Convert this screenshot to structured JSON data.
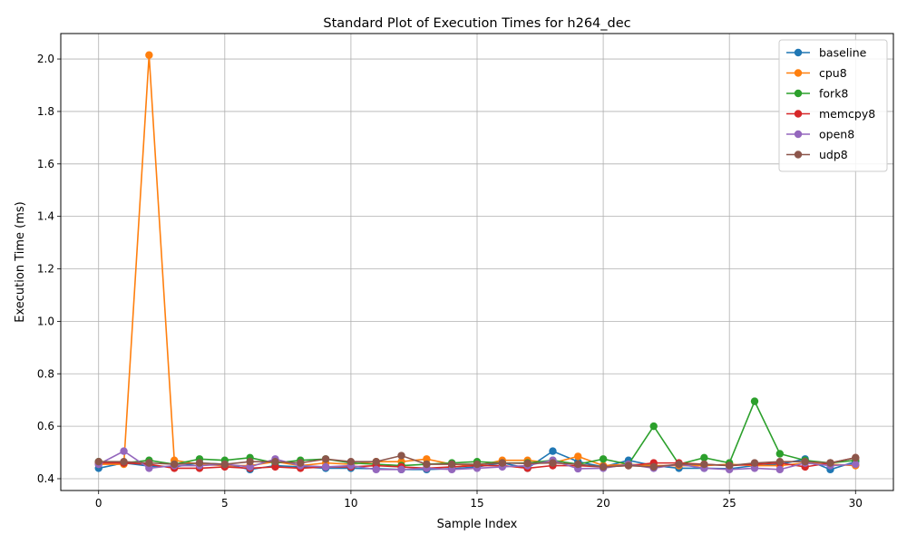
{
  "chart_data": {
    "type": "line",
    "title": "Standard Plot of Execution Times for h264_dec",
    "xlabel": "Sample Index",
    "ylabel": "Execution Time (ms)",
    "xlim": [
      -1.5,
      31.5
    ],
    "ylim": [
      0.355,
      2.097
    ],
    "xticks": [
      0,
      5,
      10,
      15,
      20,
      25,
      30
    ],
    "yticks": [
      0.4,
      0.6,
      0.8,
      1.0,
      1.2,
      1.4,
      1.6,
      1.8,
      2.0
    ],
    "ytick_labels": [
      "0.4",
      "0.6",
      "0.8",
      "1.0",
      "1.2",
      "1.4",
      "1.6",
      "1.8",
      "2.0"
    ],
    "grid": true,
    "legend_position": "top-right",
    "x": [
      0,
      1,
      2,
      3,
      4,
      5,
      6,
      7,
      8,
      9,
      10,
      11,
      12,
      13,
      14,
      15,
      16,
      17,
      18,
      19,
      20,
      21,
      22,
      23,
      24,
      25,
      26,
      27,
      28,
      29,
      30
    ],
    "series": [
      {
        "name": "baseline",
        "color": "#1f77b4",
        "values": [
          0.44,
          0.46,
          0.448,
          0.445,
          0.46,
          0.455,
          0.435,
          0.45,
          0.445,
          0.44,
          0.44,
          0.438,
          0.435,
          0.435,
          0.438,
          0.445,
          0.46,
          0.44,
          0.505,
          0.465,
          0.445,
          0.47,
          0.45,
          0.44,
          0.44,
          0.438,
          0.45,
          0.455,
          0.475,
          0.435,
          0.465
        ]
      },
      {
        "name": "cpu8",
        "color": "#ff7f0e",
        "values": [
          0.455,
          0.455,
          2.015,
          0.47,
          0.455,
          0.45,
          0.45,
          0.465,
          0.45,
          0.46,
          0.455,
          0.465,
          0.465,
          0.475,
          0.455,
          0.45,
          0.47,
          0.47,
          0.46,
          0.485,
          0.45,
          0.455,
          0.45,
          0.45,
          0.45,
          0.455,
          0.45,
          0.45,
          0.46,
          0.455,
          0.45
        ]
      },
      {
        "name": "fork8",
        "color": "#2ca02c",
        "values": [
          0.465,
          0.46,
          0.47,
          0.455,
          0.475,
          0.47,
          0.48,
          0.46,
          0.47,
          0.475,
          0.46,
          0.455,
          0.45,
          0.455,
          0.46,
          0.465,
          0.46,
          0.46,
          0.47,
          0.455,
          0.475,
          0.455,
          0.6,
          0.455,
          0.48,
          0.46,
          0.695,
          0.495,
          0.47,
          0.46,
          0.47
        ]
      },
      {
        "name": "memcpy8",
        "color": "#d62728",
        "values": [
          0.46,
          0.46,
          0.455,
          0.44,
          0.44,
          0.445,
          0.44,
          0.445,
          0.44,
          0.445,
          0.445,
          0.45,
          0.445,
          0.44,
          0.445,
          0.45,
          0.45,
          0.44,
          0.45,
          0.45,
          0.445,
          0.45,
          0.46,
          0.46,
          0.455,
          0.45,
          0.455,
          0.46,
          0.445,
          0.46,
          0.48
        ]
      },
      {
        "name": "open8",
        "color": "#9467bd",
        "values": [
          0.455,
          0.505,
          0.44,
          0.45,
          0.45,
          0.455,
          0.445,
          0.475,
          0.45,
          0.445,
          0.45,
          0.435,
          0.435,
          0.44,
          0.435,
          0.44,
          0.445,
          0.45,
          0.47,
          0.438,
          0.44,
          0.455,
          0.44,
          0.455,
          0.44,
          0.435,
          0.44,
          0.435,
          0.46,
          0.45,
          0.455
        ]
      },
      {
        "name": "udp8",
        "color": "#8c564b",
        "values": [
          0.465,
          0.465,
          0.46,
          0.455,
          0.46,
          0.455,
          0.465,
          0.465,
          0.46,
          0.475,
          0.465,
          0.465,
          0.488,
          0.455,
          0.455,
          0.455,
          0.46,
          0.458,
          0.46,
          0.455,
          0.445,
          0.45,
          0.445,
          0.455,
          0.455,
          0.45,
          0.46,
          0.465,
          0.465,
          0.46,
          0.48
        ]
      }
    ]
  }
}
